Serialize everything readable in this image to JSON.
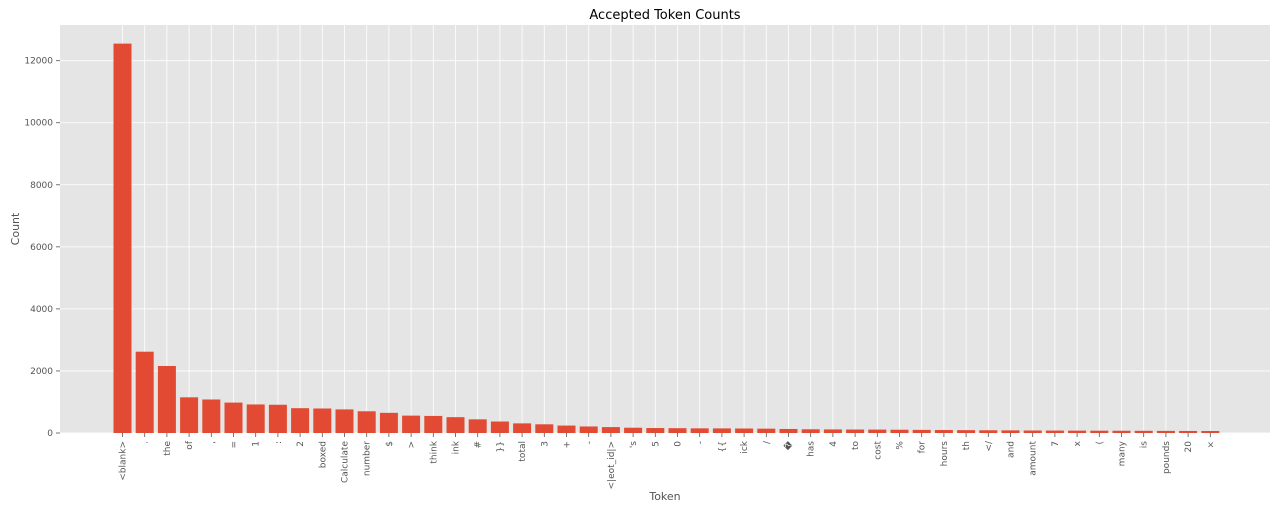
{
  "chart_data": {
    "type": "bar",
    "title": "Accepted Token Counts",
    "xlabel": "Token",
    "ylabel": "Count",
    "ylim": [
      0,
      13150
    ],
    "yticks": [
      0,
      2000,
      4000,
      6000,
      8000,
      10000,
      12000
    ],
    "grid": true,
    "bar_color": "#e24a33",
    "plot_background": "#e5e5e5",
    "categories": [
      "<blank>",
      ".",
      "the",
      "of",
      ",",
      "=",
      "1",
      ":",
      "2",
      "boxed",
      "Calculate",
      "number",
      "$",
      ">",
      "think",
      "ink",
      "#",
      "}}",
      "total",
      "3",
      "+",
      "-",
      "<|eot_id|>",
      "'s",
      "5",
      "0",
      "-",
      "{{",
      "ick",
      "/",
      "�",
      "has",
      "4",
      "to",
      "cost",
      "%",
      "for",
      "hours",
      "th",
      "</",
      "and",
      "amount",
      "7",
      "x",
      "(",
      "many",
      "is",
      "pounds",
      "20",
      "×"
    ],
    "values": [
      12550,
      2620,
      2160,
      1150,
      1080,
      980,
      920,
      910,
      800,
      790,
      760,
      700,
      650,
      560,
      550,
      510,
      440,
      370,
      310,
      280,
      240,
      210,
      190,
      170,
      160,
      155,
      150,
      148,
      145,
      140,
      130,
      120,
      115,
      112,
      110,
      105,
      100,
      96,
      92,
      88,
      85,
      80,
      78,
      76,
      74,
      72,
      70,
      68,
      66,
      64
    ]
  }
}
